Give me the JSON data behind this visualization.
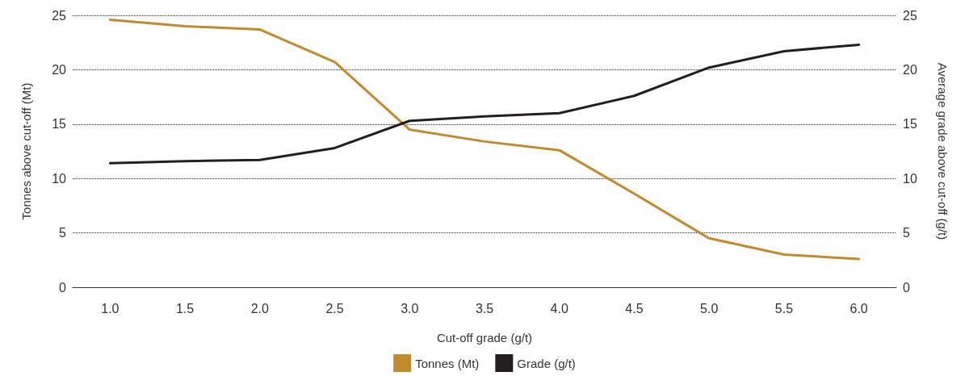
{
  "chart_data": {
    "type": "line",
    "xlabel": "Cut-off grade (g/t)",
    "ylabel": "Tonnes above cut-off (Mt)",
    "y2label": "Average grade above cut-off (g/t)",
    "categories": [
      "1.0",
      "1.5",
      "2.0",
      "2.5",
      "3.0",
      "3.5",
      "4.0",
      "4.5",
      "5.0",
      "5.5",
      "6.0"
    ],
    "series": [
      {
        "name": "Tonnes (Mt)",
        "color": "#c08a2e",
        "values": [
          24.6,
          24.0,
          23.7,
          20.7,
          14.5,
          13.4,
          12.6,
          8.6,
          4.5,
          3.0,
          2.6
        ]
      },
      {
        "name": "Grade (g/t)",
        "color": "#231f20",
        "axis": "y2",
        "values": [
          11.4,
          11.6,
          11.7,
          12.8,
          15.3,
          15.7,
          16.0,
          17.6,
          20.2,
          21.7,
          22.3
        ]
      }
    ],
    "ylim": [
      0,
      25
    ],
    "yticks": [
      0,
      5,
      10,
      15,
      20,
      25
    ],
    "y2lim": [
      0,
      25
    ],
    "y2ticks": [
      0,
      5,
      10,
      15,
      20,
      25
    ],
    "grid": "y",
    "legend": "bottom",
    "marker": "none",
    "line_style": "solid"
  }
}
